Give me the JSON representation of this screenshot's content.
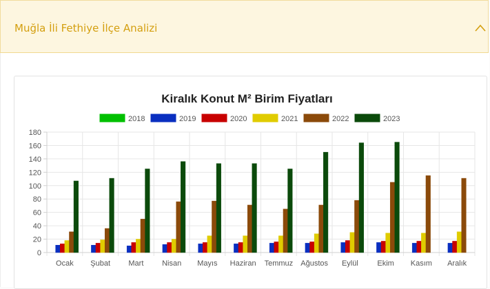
{
  "accordion": {
    "title": "Muğla İli Fethiye İlçe Analizi",
    "expanded": true,
    "toggle_icon": "chevron-up-icon"
  },
  "colors": {
    "accent": "#d49f0f",
    "header_bg": "#fdf6e0"
  },
  "chart_data": {
    "type": "bar",
    "title": "Kiralık Konut M² Birim Fiyatları",
    "xlabel": "",
    "ylabel": "",
    "ylim": [
      0,
      180
    ],
    "yticks": [
      0,
      20,
      40,
      60,
      80,
      100,
      120,
      140,
      160,
      180
    ],
    "grid": true,
    "legend_position": "top",
    "categories": [
      "Ocak",
      "Şubat",
      "Mart",
      "Nisan",
      "Mayıs",
      "Haziran",
      "Temmuz",
      "Ağustos",
      "Eylül",
      "Ekim",
      "Kasım",
      "Aralık"
    ],
    "series": [
      {
        "name": "2018",
        "color": "#00c000",
        "values": [
          0,
          0,
          0,
          0,
          0,
          0,
          0,
          0,
          0,
          0,
          0,
          0
        ]
      },
      {
        "name": "2019",
        "color": "#0a2fc0",
        "values": [
          11,
          11,
          10,
          12,
          13,
          13,
          14,
          14,
          15,
          15,
          14,
          14
        ]
      },
      {
        "name": "2020",
        "color": "#c80000",
        "values": [
          13,
          14,
          15,
          15,
          15,
          15,
          16,
          16,
          18,
          17,
          17,
          17
        ]
      },
      {
        "name": "2021",
        "color": "#e0cc00",
        "values": [
          18,
          19,
          20,
          20,
          25,
          25,
          25,
          28,
          30,
          29,
          29,
          31
        ]
      },
      {
        "name": "2022",
        "color": "#8b4a0a",
        "values": [
          31,
          36,
          50,
          76,
          77,
          71,
          65,
          71,
          78,
          105,
          115,
          111
        ]
      },
      {
        "name": "2023",
        "color": "#0b4a0b",
        "values": [
          107,
          111,
          125,
          136,
          133,
          133,
          125,
          150,
          164,
          165,
          null,
          null
        ]
      }
    ]
  }
}
